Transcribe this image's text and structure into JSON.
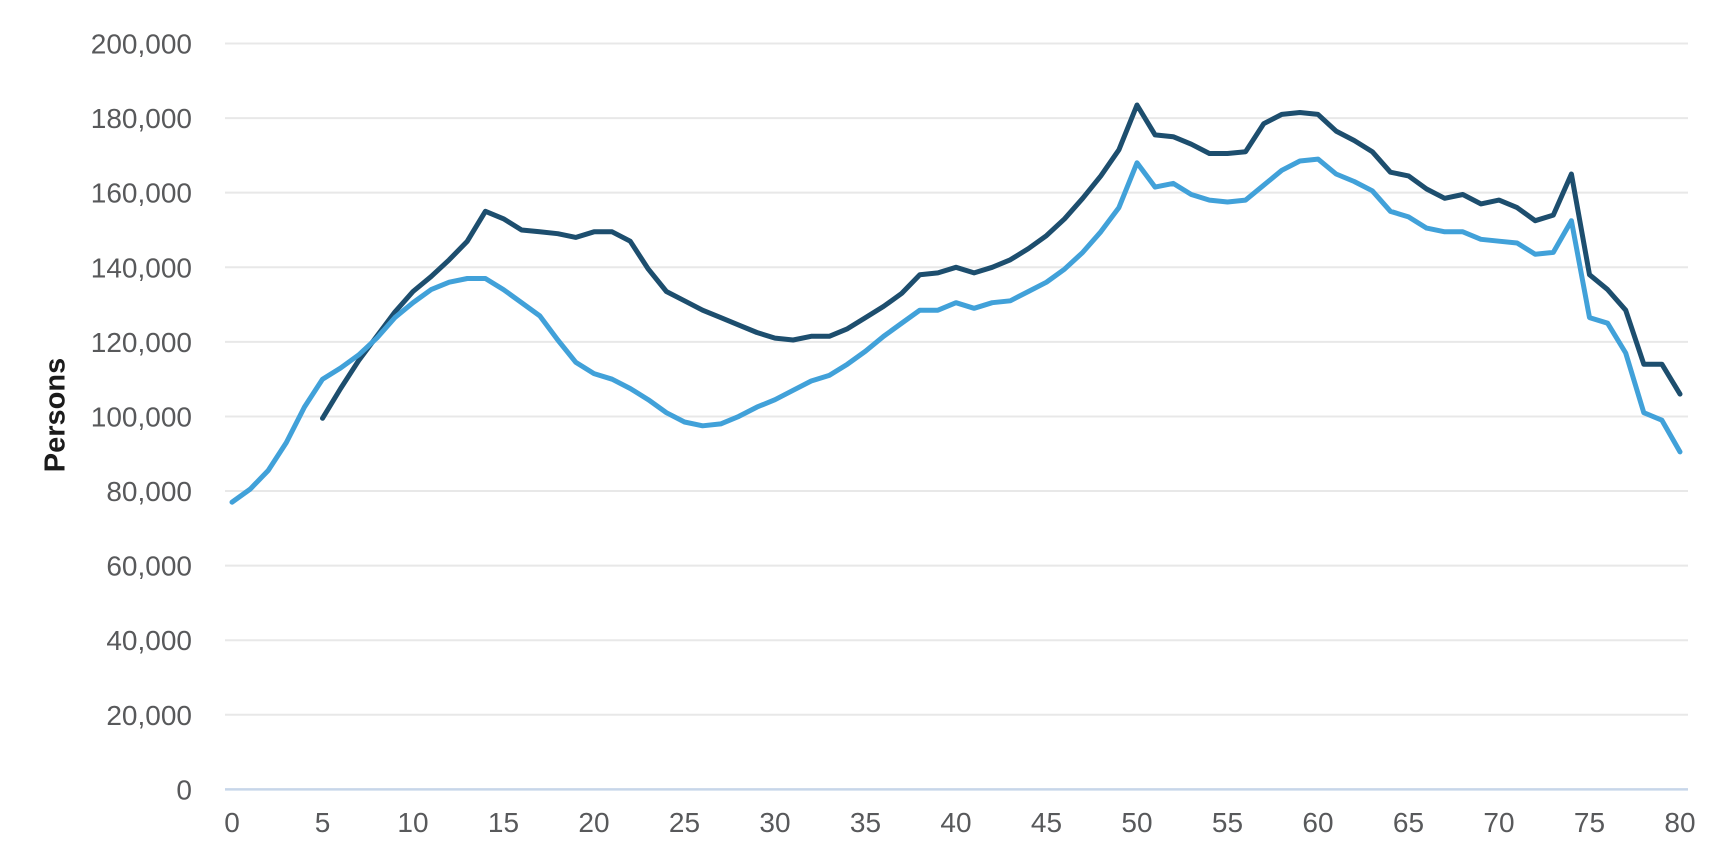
{
  "page": {
    "background_color": "#ffffff"
  },
  "chart_data": {
    "type": "line",
    "title": "",
    "xlabel": "",
    "ylabel": "Persons",
    "xlim": [
      0,
      80
    ],
    "ylim": [
      0,
      200000
    ],
    "grid": "horizontal",
    "legend": "none",
    "x_tick_labels": [
      "0",
      "5",
      "10",
      "15",
      "20",
      "25",
      "30",
      "35",
      "40",
      "45",
      "50",
      "55",
      "60",
      "65",
      "70",
      "75",
      "80"
    ],
    "x_tick_values": [
      0,
      5,
      10,
      15,
      20,
      25,
      30,
      35,
      40,
      45,
      50,
      55,
      60,
      65,
      70,
      75,
      80
    ],
    "y_tick_labels": [
      "0",
      "20,000",
      "40,000",
      "60,000",
      "80,000",
      "100,000",
      "120,000",
      "140,000",
      "160,000",
      "180,000",
      "200,000"
    ],
    "y_tick_values": [
      0,
      20000,
      40000,
      60000,
      80000,
      100000,
      120000,
      140000,
      160000,
      180000,
      200000
    ],
    "age_start": 0,
    "age_step": 1,
    "series": [
      {
        "id": "dark-blue-line",
        "color": "#1d4e6e",
        "values": [
          null,
          null,
          null,
          null,
          null,
          99500,
          107500,
          115000,
          121500,
          128000,
          133500,
          137500,
          142000,
          147000,
          155000,
          153000,
          150000,
          149500,
          149000,
          148000,
          149500,
          149500,
          147000,
          139500,
          133500,
          131000,
          128500,
          126500,
          124500,
          122500,
          121000,
          120500,
          121500,
          121500,
          123500,
          126500,
          129500,
          133000,
          138000,
          138500,
          140000,
          138500,
          140000,
          142000,
          145000,
          148500,
          153000,
          158500,
          164500,
          171500,
          183500,
          175500,
          175000,
          173000,
          170500,
          170500,
          171000,
          178500,
          181000,
          181500,
          181000,
          176500,
          174000,
          171000,
          165500,
          164500,
          161000,
          158500,
          159500,
          157000,
          158000,
          156000,
          152500,
          154000,
          165000,
          138000,
          134000,
          128500,
          114000,
          114000,
          106000
        ]
      },
      {
        "id": "light-blue-line",
        "color": "#41a1d9",
        "values": [
          77000,
          80500,
          85500,
          93000,
          102500,
          110000,
          113000,
          116500,
          121000,
          126500,
          130500,
          134000,
          136000,
          137000,
          137000,
          134000,
          130500,
          127000,
          120500,
          114500,
          111500,
          110000,
          107500,
          104500,
          101000,
          98500,
          97500,
          98000,
          100000,
          102500,
          104500,
          107000,
          109500,
          111000,
          114000,
          117500,
          121500,
          125000,
          128500,
          128500,
          130500,
          129000,
          130500,
          131000,
          133500,
          136000,
          139500,
          144000,
          149500,
          156000,
          168000,
          161500,
          162500,
          159500,
          158000,
          157500,
          158000,
          162000,
          166000,
          168500,
          169000,
          165000,
          163000,
          160500,
          155000,
          153500,
          150500,
          149500,
          149500,
          147500,
          147000,
          146500,
          143500,
          144000,
          152500,
          126500,
          125000,
          117000,
          101000,
          99000,
          90500
        ]
      }
    ],
    "colors": {
      "gridline": "#e8e8e8",
      "baseline": "#c7d6e9",
      "tick_text": "#58595b",
      "axis_title_text": "#1b1b1b"
    }
  }
}
